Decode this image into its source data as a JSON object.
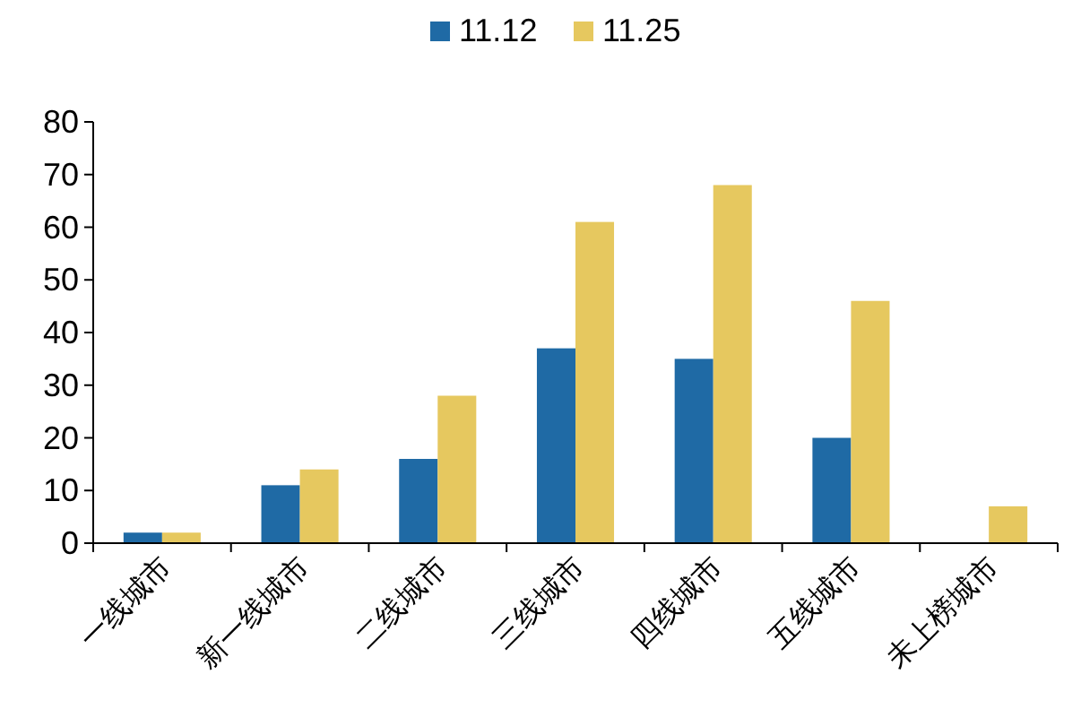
{
  "chart_data": {
    "type": "bar",
    "categories": [
      "一线城市",
      "新一线城市",
      "二线城市",
      "三线城市",
      "四线城市",
      "五线城市",
      "未上榜城市"
    ],
    "series": [
      {
        "name": "11.12",
        "color": "#1f6aa5",
        "values": [
          2,
          11,
          16,
          37,
          35,
          20,
          0
        ]
      },
      {
        "name": "11.25",
        "color": "#e6c85f",
        "values": [
          2,
          14,
          28,
          61,
          68,
          46,
          7
        ]
      }
    ],
    "ylim": [
      0,
      80
    ],
    "yticks": [
      0,
      10,
      20,
      30,
      40,
      50,
      60,
      70,
      80
    ],
    "legend": "top",
    "grid": false
  }
}
